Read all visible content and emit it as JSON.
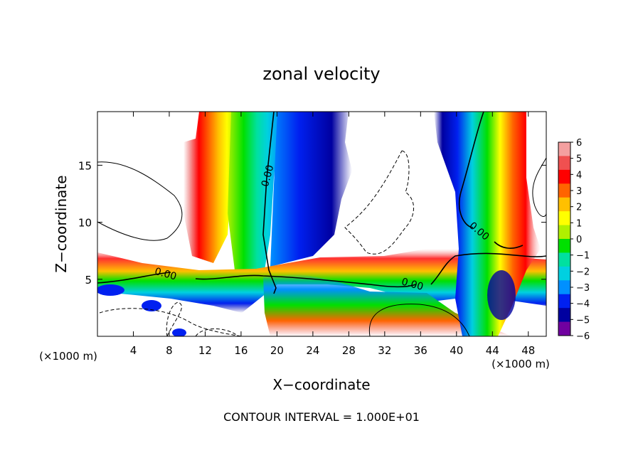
{
  "chart_data": {
    "type": "heatmap",
    "title": "zonal velocity",
    "xlabel": "X−coordinate",
    "ylabel": "Z−coordinate",
    "x_unit_label": "(×1000 m)",
    "y_unit_label": "(×1000 m)",
    "footer": "CONTOUR INTERVAL = 1.000E+01",
    "xlim": [
      0,
      50
    ],
    "ylim": [
      0,
      19.7
    ],
    "x_ticks": [
      4,
      8,
      12,
      16,
      20,
      24,
      28,
      32,
      36,
      40,
      44,
      48
    ],
    "y_ticks": [
      5,
      10,
      15
    ],
    "colorbar": {
      "range": [
        -6,
        6
      ],
      "ticks": [
        6,
        5,
        4,
        3,
        2,
        1,
        0,
        -1,
        -2,
        -3,
        -4,
        -5,
        -6
      ],
      "tick_labels": [
        "6",
        "5",
        "4",
        "3",
        "2",
        "1",
        "0",
        "−1",
        "−2",
        "−3",
        "−4",
        "−5",
        "−6"
      ],
      "colors": [
        "#f4a0a0",
        "#f05050",
        "#ff0000",
        "#ff6400",
        "#ffc000",
        "#ffff00",
        "#b0f000",
        "#00e000",
        "#00e0a0",
        "#00d0e0",
        "#0090ff",
        "#0020f0",
        "#0000a0",
        "#7000a0"
      ]
    },
    "contour_labels": [
      {
        "text": "0.00",
        "x": 19.3,
        "z": 14.0
      },
      {
        "text": "0.00",
        "x": 7.5,
        "z": 5.2
      },
      {
        "text": "0.00",
        "x": 35.0,
        "z": 4.3
      },
      {
        "text": "0.00",
        "x": 42.3,
        "z": 9.0
      }
    ],
    "features": [
      {
        "name": "positive-jet-west",
        "x": 13.5,
        "z": 12,
        "width": 5,
        "value": 5
      },
      {
        "name": "green-band",
        "x": 19.5,
        "z": 12,
        "width": 5,
        "value": 0.5
      },
      {
        "name": "negative-jet-center",
        "x": 25.5,
        "z": 12,
        "width": 3,
        "value": -4.5
      },
      {
        "name": "negative-jet-east",
        "x": 39,
        "z": 13,
        "width": 3,
        "value": -4
      },
      {
        "name": "positive-jet-east",
        "x": 45,
        "z": 13,
        "width": 3,
        "value": 4
      }
    ]
  }
}
